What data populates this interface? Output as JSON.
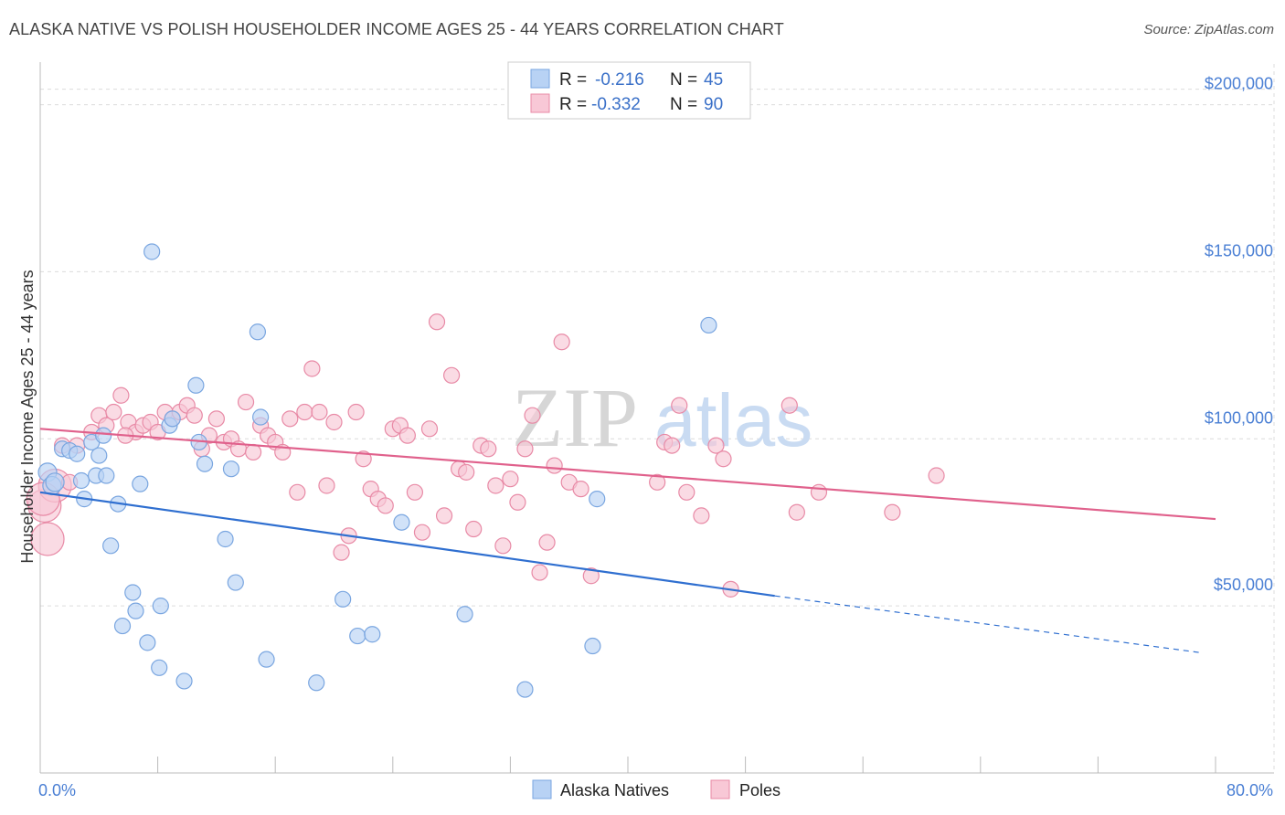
{
  "title": "ALASKA NATIVE VS POLISH HOUSEHOLDER INCOME AGES 25 - 44 YEARS CORRELATION CHART",
  "source": "Source: ZipAtlas.com",
  "watermark": {
    "part1": "ZIP",
    "part2": "atlas"
  },
  "legend": {
    "r_label": "R =",
    "n_label": "N =",
    "items": [
      {
        "r": "-0.216",
        "n": "45",
        "fill": "#b8d2f4",
        "stroke": "#7aa6e0"
      },
      {
        "r": "-0.332",
        "n": "90",
        "fill": "#f8c8d6",
        "stroke": "#e88aa6"
      }
    ]
  },
  "bottom_legend": [
    {
      "label": "Alaska Natives",
      "fill": "#b8d2f4",
      "stroke": "#7aa6e0"
    },
    {
      "label": "Poles",
      "fill": "#f8c8d6",
      "stroke": "#e88aa6"
    }
  ],
  "chart_data": {
    "type": "scatter",
    "ylabel": "Householder Income Ages 25 - 44 years",
    "xlabel": "",
    "xlim": [
      0,
      80
    ],
    "ylim": [
      0,
      210000
    ],
    "x_tick_labels": [
      "0.0%",
      "80.0%"
    ],
    "y_ticks": [
      50000,
      100000,
      150000,
      200000
    ],
    "y_tick_labels": [
      "$50,000",
      "$100,000",
      "$150,000",
      "$200,000"
    ],
    "grid": true,
    "series": [
      {
        "name": "Alaska Natives",
        "color": "#7aa6e0",
        "fill": "#b8d2f4",
        "line_color": "#2f6fd0",
        "trend": {
          "x": [
            0,
            50
          ],
          "y": [
            84000,
            53000
          ],
          "dash_to": [
            79,
            36000
          ]
        },
        "points": [
          [
            0.5,
            90000
          ],
          [
            0.8,
            86000
          ],
          [
            1.0,
            87000
          ],
          [
            1.5,
            97000
          ],
          [
            2.0,
            96500
          ],
          [
            2.5,
            95500
          ],
          [
            2.8,
            87500
          ],
          [
            3.0,
            82000
          ],
          [
            3.5,
            99000
          ],
          [
            3.8,
            89000
          ],
          [
            4.0,
            95000
          ],
          [
            4.3,
            101000
          ],
          [
            4.5,
            89000
          ],
          [
            4.8,
            68000
          ],
          [
            5.3,
            80500
          ],
          [
            5.6,
            44000
          ],
          [
            6.3,
            54000
          ],
          [
            6.5,
            48500
          ],
          [
            6.8,
            86500
          ],
          [
            7.3,
            39000
          ],
          [
            7.6,
            156000
          ],
          [
            8.1,
            31500
          ],
          [
            8.2,
            50000
          ],
          [
            8.8,
            104000
          ],
          [
            9.0,
            106000
          ],
          [
            9.8,
            27500
          ],
          [
            10.6,
            116000
          ],
          [
            10.8,
            99000
          ],
          [
            11.2,
            92500
          ],
          [
            12.6,
            70000
          ],
          [
            13.0,
            91000
          ],
          [
            13.3,
            57000
          ],
          [
            14.8,
            132000
          ],
          [
            15.0,
            106500
          ],
          [
            15.4,
            34000
          ],
          [
            18.8,
            27000
          ],
          [
            20.6,
            52000
          ],
          [
            21.6,
            41000
          ],
          [
            22.6,
            41500
          ],
          [
            24.6,
            75000
          ],
          [
            28.9,
            47500
          ],
          [
            33.0,
            25000
          ],
          [
            37.6,
            38000
          ],
          [
            37.9,
            82000
          ],
          [
            45.5,
            134000
          ]
        ]
      },
      {
        "name": "Poles",
        "color": "#e88aa6",
        "fill": "#f8c8d6",
        "line_color": "#e0618c",
        "trend": {
          "x": [
            0,
            80
          ],
          "y": [
            103000,
            76000
          ]
        },
        "points": [
          [
            0.3,
            80000
          ],
          [
            0.5,
            70000
          ],
          [
            1.0,
            86000
          ],
          [
            1.5,
            98000
          ],
          [
            2.0,
            87000
          ],
          [
            3.5,
            102000
          ],
          [
            4.0,
            107000
          ],
          [
            4.5,
            104000
          ],
          [
            5.0,
            108000
          ],
          [
            5.5,
            113000
          ],
          [
            6.0,
            105000
          ],
          [
            6.5,
            102000
          ],
          [
            7.0,
            104000
          ],
          [
            7.5,
            105000
          ],
          [
            8.0,
            102000
          ],
          [
            8.5,
            108000
          ],
          [
            9.0,
            106000
          ],
          [
            9.5,
            108000
          ],
          [
            10.0,
            110000
          ],
          [
            10.5,
            107000
          ],
          [
            11.0,
            97000
          ],
          [
            11.5,
            101000
          ],
          [
            12.0,
            106000
          ],
          [
            12.5,
            99000
          ],
          [
            13.0,
            100000
          ],
          [
            13.5,
            97000
          ],
          [
            14.0,
            111000
          ],
          [
            14.5,
            96000
          ],
          [
            15.0,
            104000
          ],
          [
            15.5,
            101000
          ],
          [
            16.0,
            99000
          ],
          [
            16.5,
            96000
          ],
          [
            17.0,
            106000
          ],
          [
            17.5,
            84000
          ],
          [
            18.0,
            108000
          ],
          [
            18.5,
            121000
          ],
          [
            19.0,
            108000
          ],
          [
            19.5,
            86000
          ],
          [
            20.0,
            105000
          ],
          [
            20.5,
            66000
          ],
          [
            21.0,
            71000
          ],
          [
            21.5,
            108000
          ],
          [
            22.0,
            94000
          ],
          [
            22.5,
            85000
          ],
          [
            23.0,
            82000
          ],
          [
            23.5,
            80000
          ],
          [
            24.0,
            103000
          ],
          [
            24.5,
            104000
          ],
          [
            25.0,
            101000
          ],
          [
            25.5,
            84000
          ],
          [
            26.0,
            72000
          ],
          [
            26.5,
            103000
          ],
          [
            27.0,
            135000
          ],
          [
            27.5,
            77000
          ],
          [
            28.0,
            119000
          ],
          [
            28.5,
            91000
          ],
          [
            29.0,
            90000
          ],
          [
            29.5,
            73000
          ],
          [
            30.0,
            98000
          ],
          [
            30.5,
            97000
          ],
          [
            31.0,
            86000
          ],
          [
            31.5,
            68000
          ],
          [
            32.0,
            88000
          ],
          [
            32.5,
            81000
          ],
          [
            33.0,
            97000
          ],
          [
            33.5,
            107000
          ],
          [
            34.0,
            60000
          ],
          [
            34.5,
            69000
          ],
          [
            35.0,
            92000
          ],
          [
            35.5,
            129000
          ],
          [
            36.0,
            87000
          ],
          [
            36.8,
            85000
          ],
          [
            37.5,
            59000
          ],
          [
            42.0,
            87000
          ],
          [
            42.5,
            99000
          ],
          [
            43.0,
            98000
          ],
          [
            43.5,
            110000
          ],
          [
            44.0,
            84000
          ],
          [
            45.0,
            77000
          ],
          [
            46.0,
            98000
          ],
          [
            46.5,
            94000
          ],
          [
            47.0,
            55000
          ],
          [
            51.0,
            110000
          ],
          [
            51.5,
            78000
          ],
          [
            53.0,
            84000
          ],
          [
            58.0,
            78000
          ],
          [
            61.0,
            89000
          ],
          [
            2.5,
            98000
          ],
          [
            0.2,
            82000
          ],
          [
            5.8,
            101000
          ]
        ]
      }
    ]
  }
}
